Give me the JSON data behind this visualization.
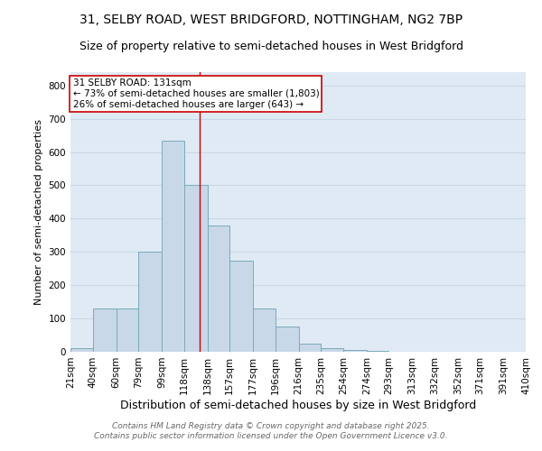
{
  "title_line1": "31, SELBY ROAD, WEST BRIDGFORD, NOTTINGHAM, NG2 7BP",
  "title_line2": "Size of property relative to semi-detached houses in West Bridgford",
  "xlabel": "Distribution of semi-detached houses by size in West Bridgford",
  "ylabel": "Number of semi-detached properties",
  "bin_edges": [
    21,
    40,
    60,
    79,
    99,
    118,
    138,
    157,
    177,
    196,
    216,
    235,
    254,
    274,
    293,
    313,
    332,
    352,
    371,
    391,
    410
  ],
  "counts": [
    10,
    130,
    130,
    300,
    635,
    500,
    380,
    275,
    130,
    75,
    25,
    10,
    5,
    3,
    1,
    0,
    0,
    0,
    0,
    0
  ],
  "property_size": 131,
  "bar_facecolor": "#c8d8e8",
  "bar_edgecolor": "#7aaabb",
  "vline_color": "#cc0000",
  "annotation_box_color": "#cc0000",
  "annotation_line1": "31 SELBY ROAD: 131sqm",
  "annotation_line2": "← 73% of semi-detached houses are smaller (1,803)",
  "annotation_line3": "26% of semi-detached houses are larger (643) →",
  "footnote1": "Contains HM Land Registry data © Crown copyright and database right 2025.",
  "footnote2": "Contains public sector information licensed under the Open Government Licence v3.0.",
  "ylim": [
    0,
    840
  ],
  "yticks": [
    0,
    100,
    200,
    300,
    400,
    500,
    600,
    700,
    800
  ],
  "grid_color": "#c8d8e8",
  "background_color": "#e0eaf4",
  "title_fontsize": 10,
  "subtitle_fontsize": 9,
  "xlabel_fontsize": 9,
  "ylabel_fontsize": 8,
  "tick_fontsize": 7.5,
  "annotation_fontsize": 7.5,
  "footnote_fontsize": 6.5
}
